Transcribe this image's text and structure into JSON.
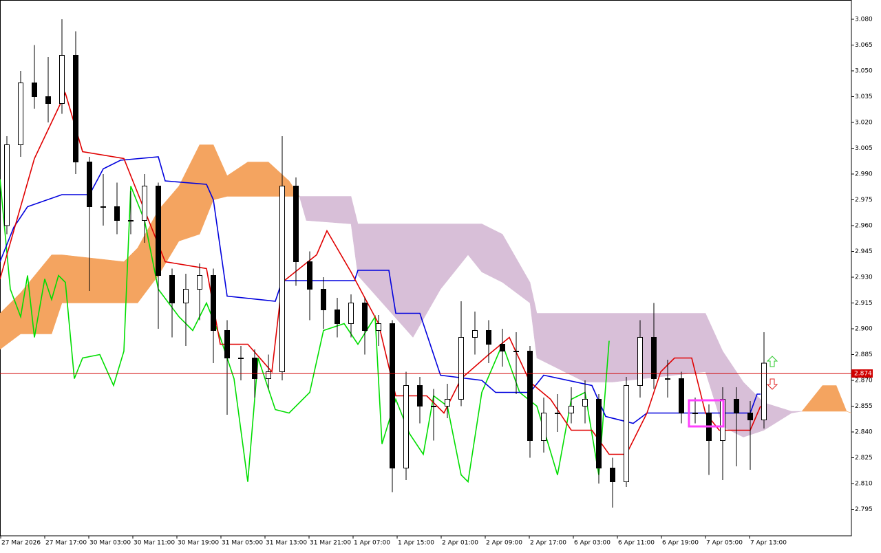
{
  "chart_data": {
    "type": "candlestick",
    "xlim": [
      0,
      154.625
    ],
    "ylim": [
      2.7796,
      3.0912
    ],
    "xticks": [
      {
        "value": 0,
        "label": "27 Mar 2026"
      },
      {
        "value": 8,
        "label": "27 Mar 17:00"
      },
      {
        "value": 16,
        "label": "30 Mar 03:00"
      },
      {
        "value": 24,
        "label": "30 Mar 11:00"
      },
      {
        "value": 32,
        "label": "30 Mar 19:00"
      },
      {
        "value": 40,
        "label": "31 Mar 05:00"
      },
      {
        "value": 48,
        "label": "31 Mar 13:00"
      },
      {
        "value": 56,
        "label": "31 Mar 21:00"
      },
      {
        "value": 64,
        "label": "1 Apr 07:00"
      },
      {
        "value": 72,
        "label": "1 Apr 15:00"
      },
      {
        "value": 80,
        "label": "2 Apr 01:00"
      },
      {
        "value": 88,
        "label": "2 Apr 09:00"
      },
      {
        "value": 96,
        "label": "2 Apr 17:00"
      },
      {
        "value": 104,
        "label": "6 Apr 03:00"
      },
      {
        "value": 112,
        "label": "6 Apr 11:00"
      },
      {
        "value": 120,
        "label": "6 Apr 19:00"
      },
      {
        "value": 128,
        "label": "7 Apr 05:00"
      },
      {
        "value": 136,
        "label": "7 Apr 13:00"
      }
    ],
    "yticks": [
      {
        "value": 3.08,
        "label": "3.080"
      },
      3.065,
      {
        "value": 3.05,
        "label": "3.050"
      },
      3.035,
      {
        "value": 3.02,
        "label": "3.020"
      },
      3.005,
      {
        "value": 2.99,
        "label": "2.990"
      },
      2.975,
      {
        "value": 2.96,
        "label": "2.960"
      },
      2.945,
      {
        "value": 2.93,
        "label": "2.930"
      },
      2.915,
      {
        "value": 2.9,
        "label": "2.900"
      },
      2.885,
      {
        "value": 2.87,
        "label": "2.870"
      },
      2.855,
      {
        "value": 2.84,
        "label": "2.840"
      },
      2.825,
      {
        "value": 2.81,
        "label": "2.810"
      },
      2.795
    ],
    "current_price": 2.874,
    "current_price_color": "#d00000",
    "up_color": "#ffffff",
    "down_color": "#000000",
    "x": [
      1.25,
      3.75,
      6.25,
      8.75,
      11.25,
      13.75,
      16.25,
      18.75,
      21.25,
      23.75,
      26.25,
      28.75,
      31.25,
      33.75,
      36.25,
      38.75,
      41.25,
      43.75,
      46.25,
      48.75,
      51.25,
      53.75,
      56.25,
      58.75,
      61.25,
      63.75,
      66.25,
      68.75,
      71.25,
      73.75,
      76.25,
      78.75,
      81.25,
      83.75,
      86.25,
      88.75,
      91.25,
      93.75,
      96.25,
      98.75,
      101.25,
      103.75,
      106.25,
      108.75,
      111.25,
      113.75,
      116.25,
      118.75,
      121.25,
      123.75,
      126.25,
      128.75,
      131.25,
      133.75,
      136.25,
      138.75
    ],
    "open": [
      2.96,
      3.007,
      3.043,
      3.035,
      3.031,
      3.059,
      2.997,
      2.971,
      2.971,
      2.963,
      2.963,
      2.983,
      2.931,
      2.915,
      2.923,
      2.931,
      2.899,
      2.883,
      2.883,
      2.871,
      2.875,
      2.983,
      2.939,
      2.923,
      2.911,
      2.903,
      2.915,
      2.899,
      2.903,
      2.819,
      2.867,
      2.855,
      2.855,
      2.859,
      2.895,
      2.899,
      2.891,
      2.887,
      2.887,
      2.835,
      2.851,
      2.851,
      2.855,
      2.859,
      2.819,
      2.811,
      2.867,
      2.895,
      2.871,
      2.871,
      2.851,
      2.851,
      2.835,
      2.859,
      2.851,
      2.847
    ],
    "high": [
      3.012,
      3.05,
      3.065,
      3.058,
      3.08,
      3.073,
      3.0,
      2.99,
      2.985,
      2.98,
      2.99,
      2.985,
      2.935,
      2.932,
      2.938,
      2.935,
      2.905,
      2.89,
      2.888,
      2.885,
      3.012,
      2.988,
      2.945,
      2.93,
      2.918,
      2.92,
      2.918,
      2.908,
      2.905,
      2.875,
      2.872,
      2.865,
      2.868,
      2.916,
      2.91,
      2.905,
      2.9,
      2.898,
      2.89,
      2.86,
      2.862,
      2.866,
      2.87,
      2.862,
      2.825,
      2.872,
      2.905,
      2.915,
      2.882,
      2.875,
      2.86,
      2.856,
      2.866,
      2.866,
      2.858,
      2.898
    ],
    "low": [
      2.955,
      3.0,
      3.028,
      3.02,
      3.025,
      2.99,
      2.922,
      2.96,
      2.955,
      2.955,
      2.95,
      2.9,
      2.895,
      2.89,
      2.905,
      2.88,
      2.85,
      2.87,
      2.86,
      2.865,
      2.87,
      2.925,
      2.905,
      2.9,
      2.895,
      2.895,
      2.885,
      2.89,
      2.805,
      2.812,
      2.845,
      2.835,
      2.848,
      2.855,
      2.885,
      2.88,
      2.878,
      2.862,
      2.825,
      2.828,
      2.84,
      2.845,
      2.845,
      2.81,
      2.796,
      2.808,
      2.86,
      2.865,
      2.86,
      2.845,
      2.845,
      2.815,
      2.812,
      2.82,
      2.818,
      2.842
    ],
    "close": [
      3.007,
      3.043,
      3.035,
      3.031,
      3.059,
      2.997,
      2.971,
      2.971,
      2.963,
      2.963,
      2.983,
      2.931,
      2.915,
      2.923,
      2.931,
      2.899,
      2.883,
      2.883,
      2.871,
      2.875,
      2.983,
      2.939,
      2.923,
      2.911,
      2.903,
      2.915,
      2.899,
      2.903,
      2.819,
      2.867,
      2.855,
      2.855,
      2.859,
      2.895,
      2.899,
      2.891,
      2.887,
      2.887,
      2.835,
      2.851,
      2.851,
      2.855,
      2.859,
      2.819,
      2.811,
      2.867,
      2.895,
      2.871,
      2.871,
      2.851,
      2.851,
      2.835,
      2.859,
      2.851,
      2.847,
      2.88
    ],
    "cloud": {
      "bull_color": "#f4a460",
      "bear_color": "#d8bfd8",
      "x": [
        0,
        3.75,
        9.375,
        11.25,
        22.5,
        25,
        28.75,
        32.5,
        36.25,
        38.75,
        41.25,
        45,
        48.75,
        52.5,
        54.375,
        55.625,
        63.75,
        65,
        75,
        80,
        85,
        87.5,
        91.25,
        96.25,
        97.5,
        106.25,
        111.25,
        128.125,
        131.25,
        135,
        138.75,
        143.75,
        145.625,
        149.375,
        151.875,
        153.75,
        154.625
      ],
      "span_a": [
        2.909,
        2.921,
        2.943,
        2.943,
        2.939,
        2.947,
        2.969,
        2.983,
        3.007,
        3.007,
        2.989,
        2.997,
        2.997,
        2.986,
        2.977,
        2.963,
        2.961,
        2.931,
        2.895,
        2.923,
        2.943,
        2.933,
        2.927,
        2.915,
        2.883,
        2.869,
        2.869,
        2.875,
        2.843,
        2.837,
        2.841,
        2.851,
        2.852,
        2.867,
        2.867,
        2.852,
        2.851
      ],
      "span_b": [
        2.888,
        2.897,
        2.897,
        2.915,
        2.915,
        2.915,
        2.931,
        2.951,
        2.955,
        2.975,
        2.977,
        2.977,
        2.977,
        2.977,
        2.977,
        2.977,
        2.977,
        2.961,
        2.961,
        2.961,
        2.961,
        2.961,
        2.955,
        2.927,
        2.909,
        2.909,
        2.909,
        2.909,
        2.887,
        2.869,
        2.857,
        2.852,
        2.852,
        2.852,
        2.852,
        2.852,
        2.851
      ]
    },
    "lines": [
      {
        "color": "#00dd00",
        "x": [
          0,
          1.875,
          3.75,
          5,
          6.25,
          8.125,
          9.375,
          10.625,
          11.875,
          13.5,
          15,
          18.125,
          20.625,
          22.5,
          23.75,
          26.25,
          28.75,
          32.5,
          35,
          37.5,
          40,
          42.5,
          45,
          46.875,
          50,
          52.5,
          56.25,
          58.75,
          62.5,
          65,
          68.125,
          69.375,
          71.875,
          74.375,
          76.875,
          78.75,
          81.25,
          83.75,
          85,
          87.5,
          91.25,
          94.375,
          97.5,
          101.25,
          103.75,
          106.25,
          108.75,
          110.625
        ],
        "values": [
          2.987,
          2.923,
          2.907,
          2.931,
          2.895,
          2.929,
          2.917,
          2.931,
          2.927,
          2.871,
          2.883,
          2.885,
          2.867,
          2.887,
          2.983,
          2.963,
          2.923,
          2.907,
          2.899,
          2.915,
          2.895,
          2.871,
          2.811,
          2.883,
          2.853,
          2.851,
          2.863,
          2.899,
          2.903,
          2.891,
          2.907,
          2.833,
          2.859,
          2.839,
          2.827,
          2.861,
          2.855,
          2.815,
          2.811,
          2.863,
          2.891,
          2.863,
          2.855,
          2.815,
          2.859,
          2.863,
          2.815,
          2.893
        ]
      },
      {
        "color": "#0000dd",
        "x": [
          0,
          2.5,
          5,
          11.25,
          16.25,
          18.75,
          21.875,
          28.75,
          30,
          37.5,
          38.75,
          41.25,
          50,
          51.25,
          64.375,
          65,
          70.625,
          71.875,
          76.25,
          80,
          87.5,
          90,
          96.25,
          98.75,
          107.5,
          110,
          115,
          117.5,
          136.25,
          137.5,
          138.125
        ],
        "values": [
          2.939,
          2.959,
          2.971,
          2.978,
          2.978,
          2.993,
          2.998,
          3.0,
          2.986,
          2.984,
          2.975,
          2.919,
          2.916,
          2.928,
          2.928,
          2.934,
          2.934,
          2.909,
          2.909,
          2.873,
          2.87,
          2.863,
          2.863,
          2.873,
          2.867,
          2.849,
          2.845,
          2.851,
          2.851,
          2.862,
          2.862
        ]
      },
      {
        "color": "#e00000",
        "x": [
          0,
          6.25,
          11.875,
          15,
          22.5,
          30,
          37.5,
          40,
          45,
          49.375,
          51.25,
          57.5,
          59.375,
          63.75,
          68.75,
          71.875,
          77.5,
          80.625,
          83.75,
          88.75,
          92.5,
          96.25,
          100,
          103.75,
          107.5,
          110.625,
          113.75,
          117.5,
          120,
          122.5,
          125.625,
          128.125,
          130.625,
          136.25,
          138.125
        ],
        "values": [
          2.929,
          2.999,
          3.037,
          3.003,
          2.999,
          2.939,
          2.935,
          2.891,
          2.891,
          2.875,
          2.927,
          2.943,
          2.957,
          2.933,
          2.903,
          2.861,
          2.861,
          2.851,
          2.871,
          2.885,
          2.895,
          2.869,
          2.859,
          2.841,
          2.841,
          2.827,
          2.827,
          2.851,
          2.875,
          2.883,
          2.883,
          2.851,
          2.841,
          2.841,
          2.855
        ]
      }
    ]
  }
}
